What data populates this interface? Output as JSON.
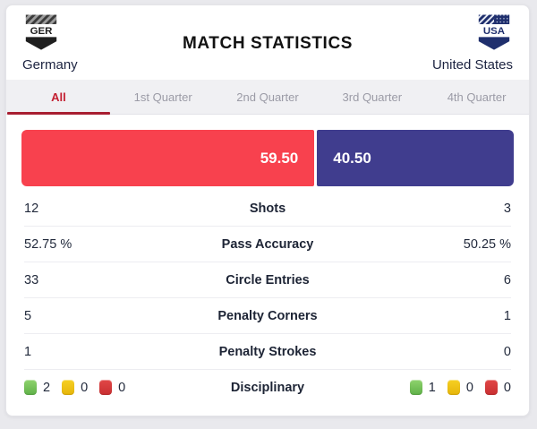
{
  "header": {
    "title": "MATCH STATISTICS",
    "home": {
      "code": "GER",
      "name": "Germany"
    },
    "away": {
      "code": "USA",
      "name": "United States"
    }
  },
  "tabs": [
    {
      "label": "All",
      "active": true
    },
    {
      "label": "1st Quarter",
      "active": false
    },
    {
      "label": "2nd Quarter",
      "active": false
    },
    {
      "label": "3rd Quarter",
      "active": false
    },
    {
      "label": "4th Quarter",
      "active": false
    }
  ],
  "possession": {
    "home_value": "59.50",
    "away_value": "40.50",
    "home_pct": 59.5,
    "away_pct": 40.5
  },
  "stats": [
    {
      "label": "Shots",
      "home": "12",
      "away": "3"
    },
    {
      "label": "Pass Accuracy",
      "home": "52.75 %",
      "away": "50.25 %"
    },
    {
      "label": "Circle Entries",
      "home": "33",
      "away": "6"
    },
    {
      "label": "Penalty Corners",
      "home": "5",
      "away": "1"
    },
    {
      "label": "Penalty Strokes",
      "home": "1",
      "away": "0"
    }
  ],
  "disciplinary": {
    "label": "Disciplinary",
    "home": {
      "green": "2",
      "yellow": "0",
      "red": "0"
    },
    "away": {
      "green": "1",
      "yellow": "0",
      "red": "0"
    }
  },
  "colors": {
    "home_bar": "#f8414e",
    "away_bar": "#403d8e",
    "active_tab": "#c32032",
    "tab_underline": "#a81e31",
    "green_card": "#6fbe50",
    "yellow_card": "#eec011",
    "red_card": "#d53a3c"
  }
}
